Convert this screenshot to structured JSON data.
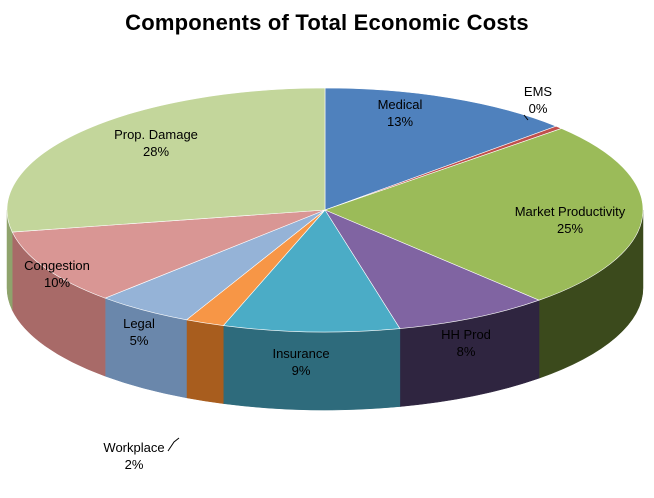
{
  "chart_data": {
    "type": "pie",
    "title": "Components of Total Economic Costs",
    "slices": [
      {
        "label": "Medical",
        "pct_label": "13%",
        "value": 13,
        "color": "#4f81bd",
        "side": "#3a6090"
      },
      {
        "label": "EMS",
        "pct_label": "0%",
        "value": 0.4,
        "color": "#c0504d",
        "side": "#8c3a38"
      },
      {
        "label": "Market Productivity",
        "pct_label": "25%",
        "value": 25,
        "color": "#9bbb59",
        "side": "#3b4a1c"
      },
      {
        "label": "HH Prod",
        "pct_label": "8%",
        "value": 8,
        "color": "#8064a2",
        "side": "#2f2540"
      },
      {
        "label": "Insurance",
        "pct_label": "9%",
        "value": 9,
        "color": "#4bacc6",
        "side": "#2e6b7c"
      },
      {
        "label": "Workplace",
        "pct_label": "2%",
        "value": 2,
        "color": "#f79646",
        "side": "#a85d1e"
      },
      {
        "label": "Legal",
        "pct_label": "5%",
        "value": 5,
        "color": "#95b3d7",
        "side": "#6a87ab"
      },
      {
        "label": "Congestion",
        "pct_label": "10%",
        "value": 10,
        "color": "#d99694",
        "side": "#a86a68"
      },
      {
        "label": "Prop. Damage",
        "pct_label": "28%",
        "value": 28,
        "color": "#c3d69b",
        "side": "#8fa36c"
      }
    ]
  }
}
